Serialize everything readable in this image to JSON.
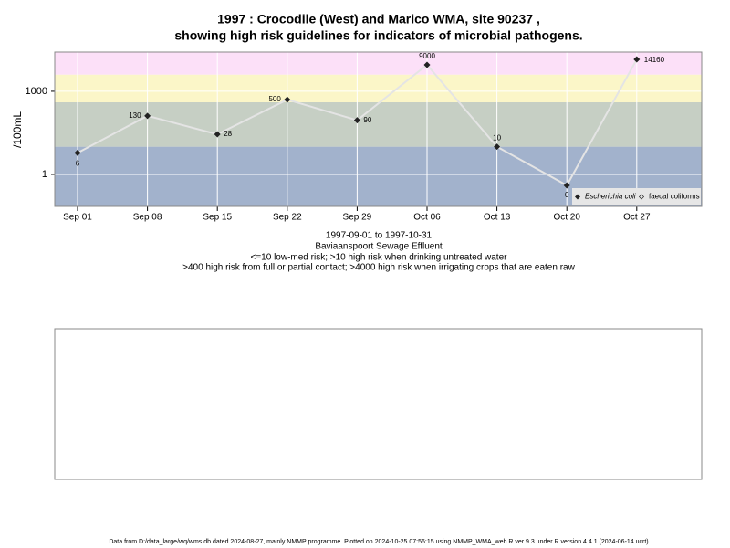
{
  "chart_data": {
    "type": "line",
    "title": [
      "1997 : Crocodile (West) and Marico WMA, site 90237 ,",
      "showing high risk guidelines for indicators of microbial pathogens."
    ],
    "y_label": "/100mL",
    "categories": [
      "Sep 01",
      "Sep 08",
      "Sep 15",
      "Sep 22",
      "Sep 29",
      "Oct 06",
      "Oct 13",
      "Oct 20",
      "Oct 27"
    ],
    "series": [
      {
        "name": "Escherichia coli",
        "color": "#222222",
        "values": [
          6,
          130,
          28,
          500,
          90,
          9000,
          10,
          0.4,
          14160
        ],
        "value_labels": [
          "6",
          "130",
          "28",
          "500",
          "90",
          "9000",
          "10",
          "0",
          "14160"
        ]
      },
      {
        "name": "faecal coliforms",
        "color": "#222222",
        "values": [
          null,
          null,
          null,
          null,
          null,
          null,
          null,
          null,
          null
        ]
      }
    ],
    "ylim": [
      0.07,
      26000
    ],
    "yticks": [
      1,
      1000
    ],
    "log_scale": true,
    "grid": true,
    "legend": "bottom-right",
    "bands": [
      {
        "from": 0.07,
        "to": 10,
        "color": "#a2b2cc"
      },
      {
        "from": 10,
        "to": 400,
        "color": "#c6cfc4"
      },
      {
        "from": 400,
        "to": 4000,
        "color": "#fbf6c8"
      },
      {
        "from": 4000,
        "to": 26000,
        "color": "#fce0f8"
      }
    ],
    "notes": [
      "1997-09-01 to 1997-10-31",
      "Baviaanspoort Sewage Effluent",
      "<=10 low-med risk; >10 high risk when drinking untreated water",
      ">400 high risk from full or partial contact; >4000 high risk when irrigating crops that are eaten raw"
    ],
    "footer": "Data from D:/data_large/wq/wms.db dated 2024-08-27, mainly NMMP programme. Plotted on 2024-10-25 07:56:15 using NMMP_WMA_web.R ver 9.3 under R version 4.4.1 (2024-06-14 ucrt)"
  }
}
